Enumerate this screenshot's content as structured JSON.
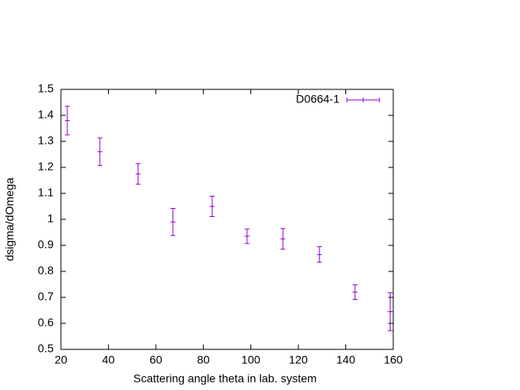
{
  "chart_data": {
    "type": "scatter",
    "x_label": "Scattering angle theta in lab. system",
    "y_label": "dsigma/dOmega",
    "series": [
      {
        "name": "D0664-1",
        "color": "#9400d3",
        "x": [
          22.7,
          36.4,
          52.5,
          67.2,
          83.7,
          98.4,
          113.5,
          128.9,
          143.9,
          158.7
        ],
        "values": [
          1.38,
          1.26,
          1.175,
          0.99,
          1.05,
          0.935,
          0.925,
          0.865,
          0.72,
          0.645
        ],
        "errors": [
          0.055,
          0.053,
          0.04,
          0.052,
          0.039,
          0.028,
          0.04,
          0.03,
          0.028,
          0.073
        ]
      }
    ],
    "xlim": [
      20,
      160
    ],
    "xticks": [
      20,
      40,
      60,
      80,
      100,
      120,
      140,
      160
    ],
    "ylim": [
      0.5,
      1.5
    ],
    "yticks": [
      0.5,
      0.6,
      0.7,
      0.8,
      0.9,
      1,
      1.1,
      1.2,
      1.3,
      1.4,
      1.5
    ],
    "grid": false,
    "legend": "top-right"
  }
}
